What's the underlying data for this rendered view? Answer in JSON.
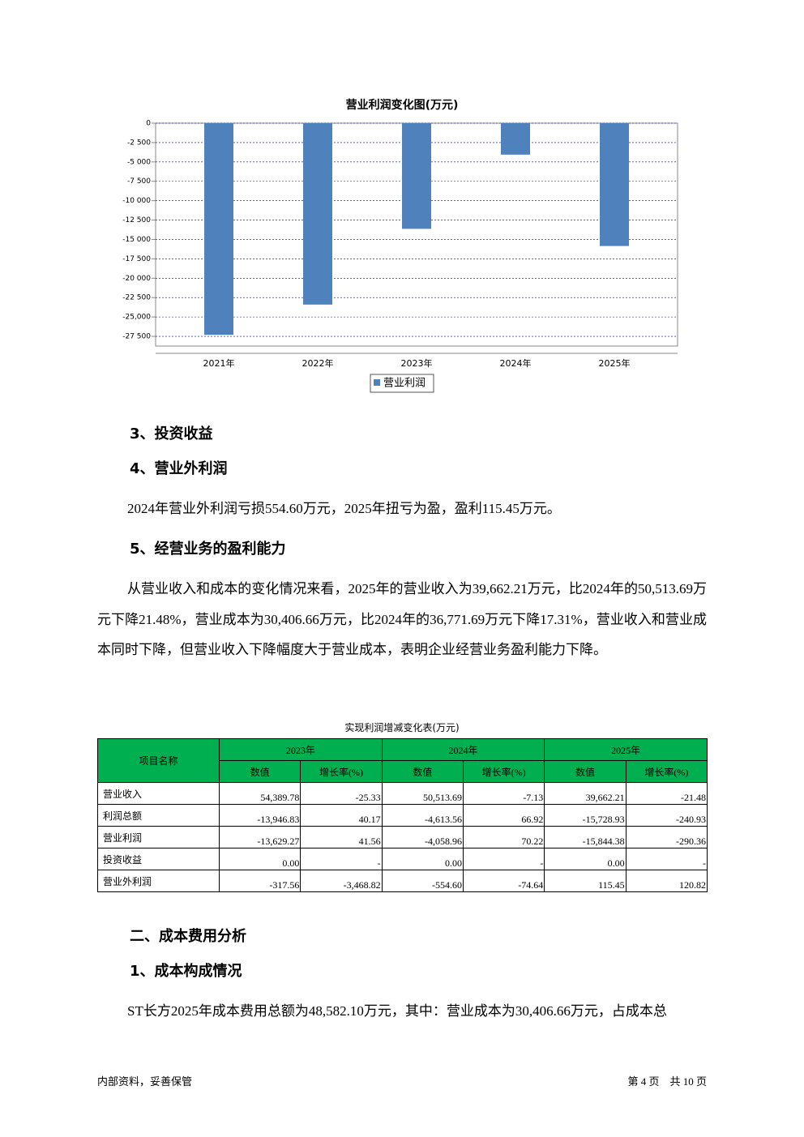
{
  "chart_data": {
    "type": "bar",
    "title": "营业利润变化图(万元)",
    "categories": [
      "2021年",
      "2022年",
      "2023年",
      "2024年",
      "2025年"
    ],
    "series": [
      {
        "name": "营业利润",
        "color": "#4f81bd",
        "values": [
          -27300,
          -23400,
          -13629.27,
          -4058.96,
          -15844.38
        ]
      }
    ],
    "ylim": [
      -28750,
      0
    ],
    "yticks": [
      0,
      {
        "value": -2500,
        "label": "-2 500"
      },
      {
        "value": -5000,
        "label": "-5 000"
      },
      {
        "value": -7500,
        "label": "-7 500"
      },
      {
        "value": -10000,
        "label": "-10 000"
      },
      {
        "value": -12500,
        "label": "-12 500"
      },
      {
        "value": -15000,
        "label": "-15 000"
      },
      {
        "value": -17500,
        "label": "-17 500"
      },
      {
        "value": -20000,
        "label": "-20 000"
      },
      {
        "value": -22500,
        "label": "-22 500"
      },
      {
        "value": -25000,
        "label": "-25,000"
      },
      {
        "value": -27500,
        "label": "-27 500"
      }
    ],
    "grid": true
  },
  "headings": [
    "3、投资收益",
    "4、营业外利润",
    "5、经营业务的盈利能力",
    "二、成本费用分析",
    "1、成本构成情况"
  ],
  "paragraphs": [
    "2024年营业外利润亏损554.60万元，2025年扭亏为盈，盈利115.45万元。",
    "从营业收入和成本的变化情况来看，2025年的营业收入为39,662.21万元，比2024年的50,513.69万元下降21.48%，营业成本为30,406.66万元，比2024年的36,771.69万元下降17.31%，营业收入和营业成本同时下降，但营业收入下降幅度大于营业成本，表明企业经营业务盈利能力下降。",
    "ST长方2025年成本费用总额为48,582.10万元，其中：营业成本为30,406.66万元，占成本总"
  ],
  "table": {
    "title": "实现利润增减变化表(万元)",
    "corner": "项目名称",
    "years": [
      "2023年",
      "2024年",
      "2025年"
    ],
    "subheaders": [
      "数值",
      "增长率(%)",
      "数值",
      "增长率(%)",
      "数值",
      "增长率(%)"
    ],
    "rows": [
      [
        "营业收入",
        "54,389.78",
        "-25.33",
        "50,513.69",
        "-7.13",
        "39,662.21",
        "-21.48"
      ],
      [
        "利润总额",
        "-13,946.83",
        "40.17",
        "-4,613.56",
        "66.92",
        "-15,728.93",
        "-240.93"
      ],
      [
        "营业利润",
        "-13,629.27",
        "41.56",
        "-4,058.96",
        "70.22",
        "-15,844.38",
        "-290.36"
      ],
      [
        "投资收益",
        "0.00",
        "-",
        "0.00",
        "-",
        "0.00",
        "-"
      ],
      [
        "营业外利润",
        "-317.56",
        "-3,468.82",
        "-554.60",
        "-74.64",
        "115.45",
        "120.82"
      ]
    ]
  },
  "footer": {
    "left": "内部资料，妥善保管",
    "right": "第 4 页　共 10 页"
  }
}
